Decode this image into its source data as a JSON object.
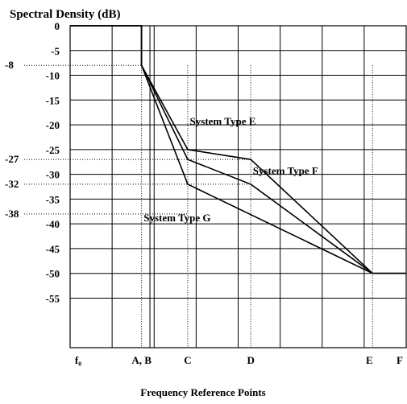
{
  "chart_data": {
    "type": "line",
    "title": "Spectral Density (dB)",
    "xlabel": "Frequency Reference Points",
    "ylabel": "",
    "ylim": [
      -65,
      0
    ],
    "grid": true,
    "x_points": [
      {
        "label": "f₀",
        "value": 0
      },
      {
        "label": "A, B",
        "value": 1.7
      },
      {
        "label": "C",
        "value": 2.8
      },
      {
        "label": "D",
        "value": 4.3
      },
      {
        "label": "E",
        "value": 7.2
      },
      {
        "label": "F",
        "value": 8.0
      }
    ],
    "y_ticks": [
      0,
      -5,
      -10,
      -15,
      -20,
      -25,
      -30,
      -35,
      -40,
      -45,
      -50,
      -55
    ],
    "y_tick_labels": [
      "0",
      "-5",
      "-10",
      "-15",
      "-20",
      "-25",
      "-30",
      "-35",
      "-40",
      "-45",
      "-50",
      "-55"
    ],
    "reference_levels": [
      {
        "label": "-8",
        "value": -8,
        "x_end": 1.7
      },
      {
        "label": "-27",
        "value": -27,
        "x_end": 4.3
      },
      {
        "label": "-32",
        "value": -32,
        "x_end": 4.3
      },
      {
        "label": "-38",
        "value": -38,
        "x_end": 2.8
      }
    ],
    "vertical_refs": [
      1.7,
      2.8,
      4.3,
      7.2
    ],
    "series": [
      {
        "name": "System Type E",
        "x": [
          0,
          1.7,
          1.7,
          2.8,
          4.3,
          7.2,
          8.0
        ],
        "y": [
          0,
          0,
          -8,
          -25,
          -27,
          -50,
          -50
        ],
        "label_at": [
          2.85,
          -20
        ]
      },
      {
        "name": "System Type F",
        "x": [
          0,
          1.7,
          1.7,
          2.8,
          4.3,
          7.2,
          8.0
        ],
        "y": [
          0,
          0,
          -8,
          -27,
          -32,
          -50,
          -50
        ],
        "label_at": [
          4.35,
          -30
        ]
      },
      {
        "name": "System Type G",
        "x": [
          0,
          1.7,
          1.7,
          2.8,
          7.2,
          8.0
        ],
        "y": [
          0,
          0,
          -8,
          -32,
          -50,
          -50
        ],
        "label_at": [
          1.75,
          -39.5
        ]
      }
    ]
  }
}
